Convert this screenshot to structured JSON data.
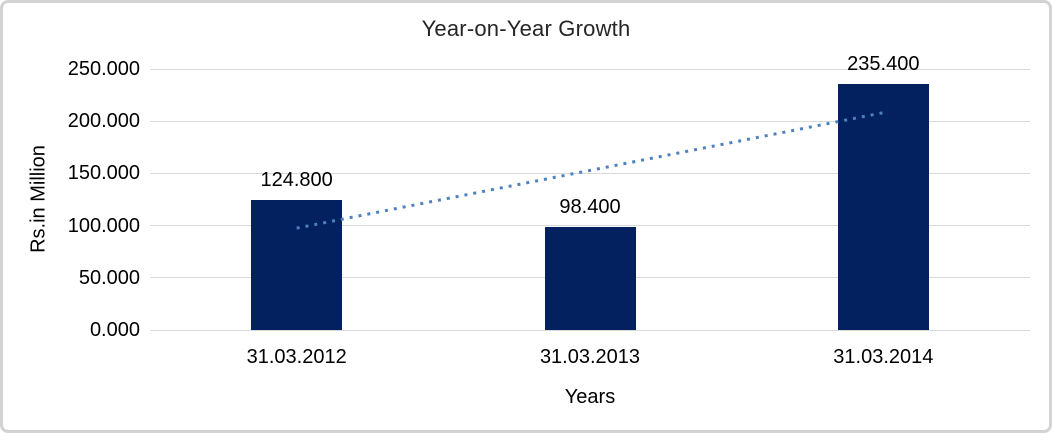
{
  "chart_data": {
    "type": "bar",
    "title": "Year-on-Year Growth",
    "ylabel": "Rs.in Million",
    "xlabel": "Years",
    "categories": [
      "31.03.2012",
      "31.03.2013",
      "31.03.2014"
    ],
    "values": [
      124.8,
      98.4,
      235.4
    ],
    "data_labels": [
      "124.800",
      "98.400",
      "235.400"
    ],
    "ylim": [
      0,
      250
    ],
    "yticks": [
      {
        "value": 0,
        "label": "0.000"
      },
      {
        "value": 50,
        "label": "50.000"
      },
      {
        "value": 100,
        "label": "100.000"
      },
      {
        "value": 150,
        "label": "150.000"
      },
      {
        "value": 200,
        "label": "200.000"
      },
      {
        "value": 250,
        "label": "250.000"
      }
    ],
    "grid": true,
    "legend": "none",
    "trendline": {
      "type": "linear",
      "style": "dotted"
    },
    "colors": {
      "bar": "#03215f",
      "trend": "#4e81bd",
      "gridline": "#d9d9d9",
      "frame_border": "#d3d3d3",
      "title_text": "#262626",
      "axis_text": "#000000"
    }
  }
}
